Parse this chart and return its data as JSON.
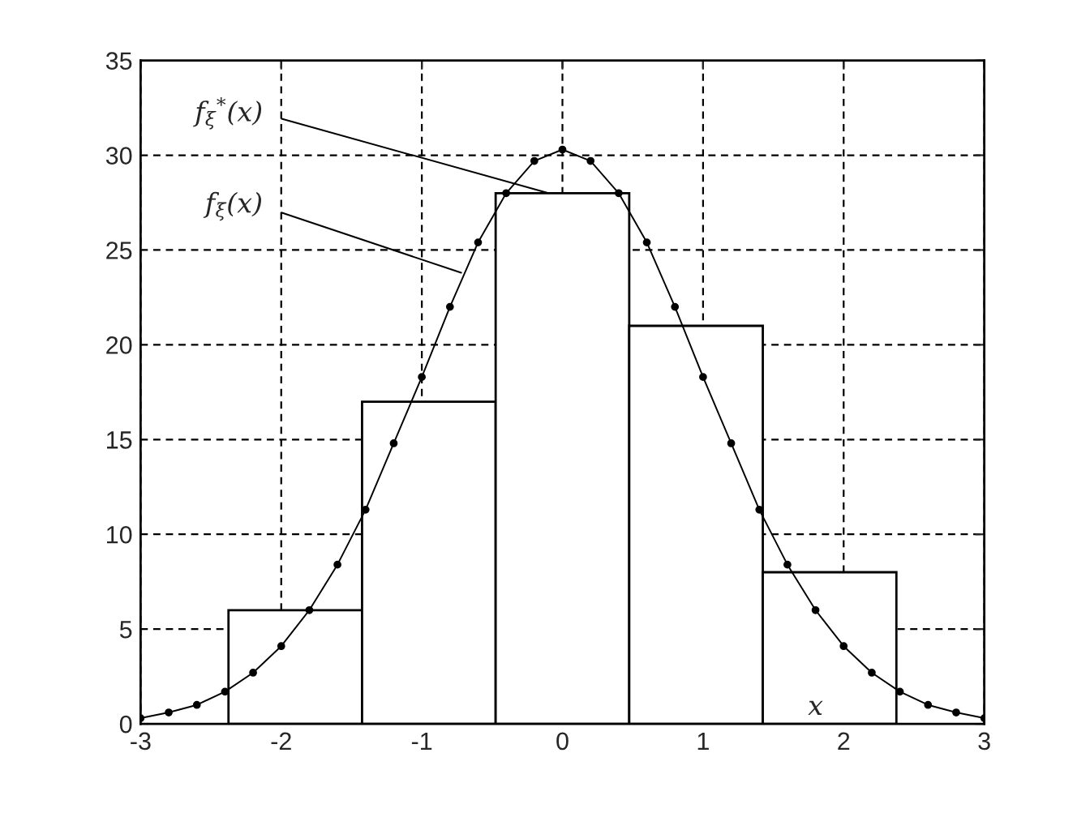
{
  "chart_data": {
    "type": "histogram",
    "xlabel": "x",
    "series": [
      {
        "color": "#ffffff",
        "bins": [
          -2.375,
          -1.425,
          -0.475,
          0.475,
          1.425,
          2.375
        ],
        "values": [
          6,
          17,
          28,
          21,
          8
        ]
      },
      {
        "type": "line",
        "color": "#000000",
        "marker": "circle",
        "x": [
          -3,
          -2.8,
          -2.6,
          -2.4,
          -2.2,
          -2,
          -1.8,
          -1.6,
          -1.4,
          -1.2,
          -1,
          -0.8,
          -0.6,
          -0.4,
          -0.2,
          0,
          0.2,
          0.4,
          0.6,
          0.8,
          1,
          1.2,
          1.4,
          1.6,
          1.8,
          2,
          2.2,
          2.4,
          2.6,
          2.8,
          3
        ],
        "values": [
          0.3,
          0.6,
          1.0,
          1.7,
          2.7,
          4.1,
          6.0,
          8.4,
          11.3,
          14.8,
          18.3,
          22.0,
          25.4,
          28.0,
          29.7,
          30.3,
          29.7,
          28.0,
          25.4,
          22.0,
          18.3,
          14.8,
          11.3,
          8.4,
          6.0,
          4.1,
          2.7,
          1.7,
          1.0,
          0.6,
          0.3
        ]
      }
    ],
    "annotations": [
      {
        "text": "f$_{ξ}$$^{*}$(x)",
        "x": -0.1,
        "y": 28
      },
      {
        "text": "f$_{ξ}$(x)",
        "x": -0.72,
        "y": 23.8
      }
    ],
    "xlim": [
      -3,
      3
    ],
    "ylim": [
      0,
      35
    ],
    "xticks": [
      -3,
      -2,
      -1,
      0,
      1,
      2,
      3
    ],
    "yticks": [
      0,
      5,
      10,
      15,
      20,
      25,
      30,
      35
    ],
    "grid": true
  }
}
